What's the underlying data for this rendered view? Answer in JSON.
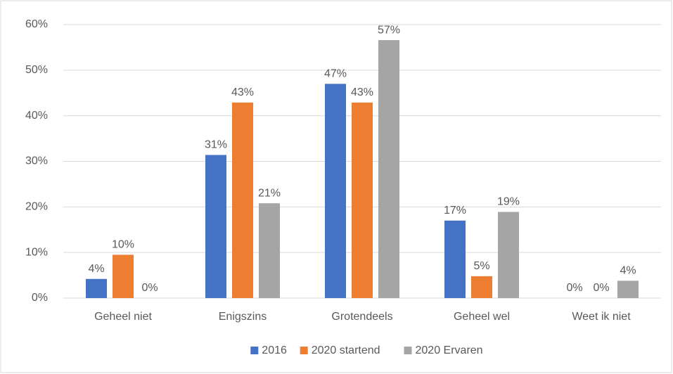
{
  "chart_data": {
    "type": "bar",
    "categories": [
      "Geheel niet",
      "Enigszins",
      "Grotendeels",
      "Geheel wel",
      "Weet ik niet"
    ],
    "series": [
      {
        "name": "2016",
        "color": "#4472c4",
        "values": [
          4.2,
          31.4,
          47,
          17,
          0
        ],
        "value_labels": [
          "4%",
          "31%",
          "47%",
          "17%",
          "0%"
        ]
      },
      {
        "name": "2020 startend",
        "color": "#ed7d31",
        "values": [
          9.5,
          42.9,
          42.9,
          4.8,
          0
        ],
        "value_labels": [
          "10%",
          "43%",
          "43%",
          "5%",
          "0%"
        ]
      },
      {
        "name": "2020 Ervaren",
        "color": "#a5a5a5",
        "values": [
          0,
          20.8,
          56.6,
          18.9,
          3.8
        ],
        "value_labels": [
          "0%",
          "21%",
          "57%",
          "19%",
          "4%"
        ]
      }
    ],
    "ylim": [
      0,
      60
    ],
    "yticks": [
      {
        "value": 0,
        "label": "0%"
      },
      {
        "value": 10,
        "label": "10%"
      },
      {
        "value": 20,
        "label": "20%"
      },
      {
        "value": 30,
        "label": "30%"
      },
      {
        "value": 40,
        "label": "40%"
      },
      {
        "value": 50,
        "label": "50%"
      },
      {
        "value": 60,
        "label": "60%"
      }
    ],
    "grid": true,
    "legend": "bottom"
  }
}
